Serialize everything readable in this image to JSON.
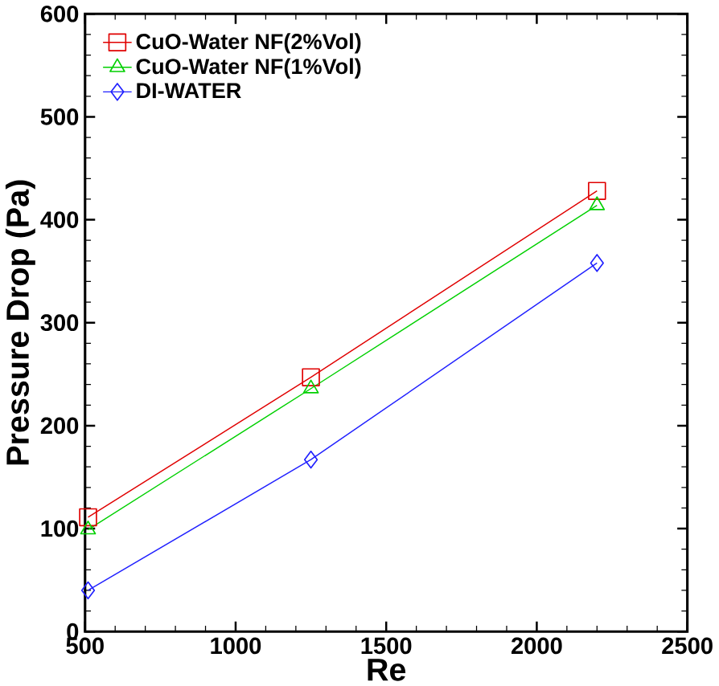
{
  "chart_data": {
    "type": "line",
    "xlabel": "Re",
    "ylabel": "Pressure Drop (Pa)",
    "x": [
      510,
      1250,
      2200
    ],
    "series": [
      {
        "name": "CuO-Water NF(2%Vol)",
        "color": "#e00000",
        "marker": "square",
        "values": [
          111,
          247,
          428
        ]
      },
      {
        "name": "CuO-Water NF(1%Vol)",
        "color": "#00d000",
        "marker": "triangle",
        "values": [
          99,
          236,
          414
        ]
      },
      {
        "name": "DI-WATER",
        "color": "#2020ff",
        "marker": "diamond",
        "values": [
          40,
          167,
          358
        ]
      }
    ],
    "xlim": [
      500,
      2500
    ],
    "ylim": [
      0,
      600
    ],
    "xticks": [
      500,
      1000,
      1500,
      2000,
      2500
    ],
    "yticks": [
      0,
      100,
      200,
      300,
      400,
      500,
      600
    ],
    "legend": "top left",
    "grid": false,
    "line_style": "solid"
  }
}
